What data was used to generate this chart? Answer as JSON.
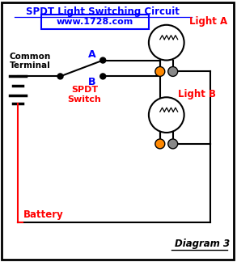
{
  "title": "SPDT Light Switching Circuit",
  "website": "www.1728.com",
  "bg_color": "#ffffff",
  "border_color": "#000000",
  "title_color": "#0000ff",
  "red_color": "#ff0000",
  "black_color": "#000000",
  "blue_color": "#0000ff",
  "orange_color": "#ff8800",
  "gray_color": "#888888",
  "label_light_a": "Light A",
  "label_light_b": "Light B",
  "label_common": "Common\nTerminal",
  "label_spdt": "SPDT\nSwitch",
  "label_battery": "Battery",
  "label_diagram": "Diagram 3",
  "label_a": "A",
  "label_b": "B"
}
